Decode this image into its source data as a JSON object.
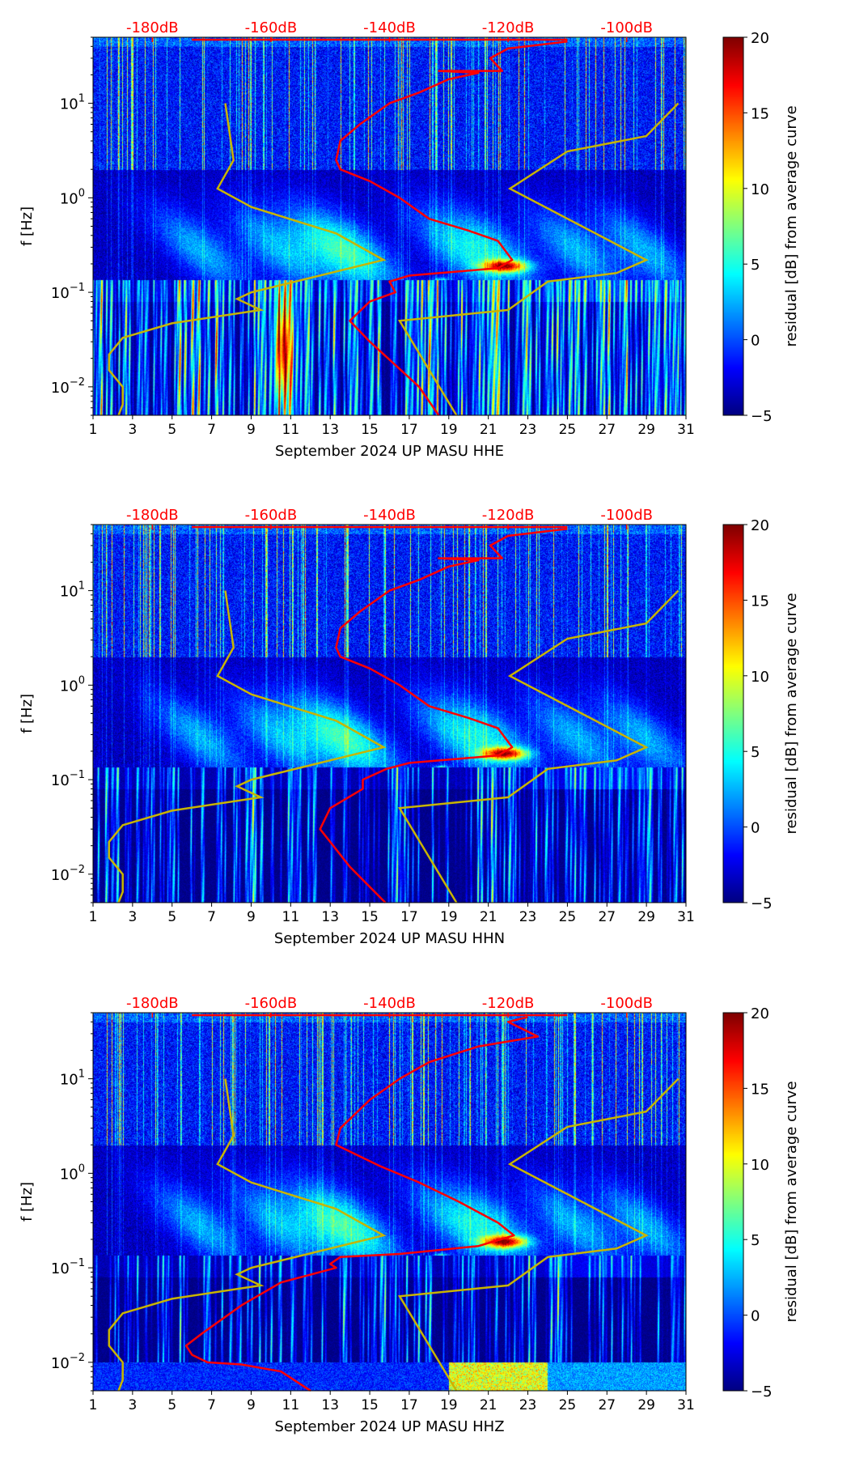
{
  "chart_data": [
    {
      "type": "heatmap",
      "title": "",
      "xlabel": "September 2024 UP MASU  HHE",
      "ylabel": "f [Hz]",
      "colorbar_label": "residual [dB] from average curve",
      "red_curve_db_freq": [
        [
          -110,
          45
        ],
        [
          -120,
          38
        ],
        [
          -123,
          30
        ],
        [
          -121,
          22
        ],
        [
          -131.7,
          22
        ],
        [
          -125,
          21
        ],
        [
          -130,
          18
        ],
        [
          -135,
          13
        ],
        [
          -140,
          10
        ],
        [
          -145,
          6
        ],
        [
          -148.3,
          4
        ],
        [
          -149,
          2.5
        ],
        [
          -148.3,
          2
        ],
        [
          -143.3,
          1.5
        ],
        [
          -138.3,
          1
        ],
        [
          -133.3,
          0.6
        ],
        [
          -126.7,
          0.45
        ],
        [
          -121.7,
          0.35
        ],
        [
          -119.3,
          0.22
        ],
        [
          -121.7,
          0.18
        ],
        [
          -136.7,
          0.15
        ],
        [
          -140,
          0.13
        ],
        [
          -139,
          0.1
        ],
        [
          -143.3,
          0.08
        ],
        [
          -146.7,
          0.05
        ],
        [
          -143.3,
          0.03
        ],
        [
          -135,
          0.01
        ],
        [
          -131.7,
          0.005
        ]
      ]
    },
    {
      "type": "heatmap",
      "title": "",
      "xlabel": "September 2024 UP MASU  HHN",
      "ylabel": "f [Hz]",
      "colorbar_label": "residual [dB] from average curve",
      "red_curve_db_freq": [
        [
          -110,
          45
        ],
        [
          -120,
          38
        ],
        [
          -123,
          30
        ],
        [
          -121,
          22
        ],
        [
          -131.7,
          22
        ],
        [
          -125,
          21
        ],
        [
          -130,
          18
        ],
        [
          -135,
          13
        ],
        [
          -140,
          10
        ],
        [
          -145,
          6
        ],
        [
          -148.3,
          4
        ],
        [
          -149,
          2.5
        ],
        [
          -148.3,
          2
        ],
        [
          -143.3,
          1.5
        ],
        [
          -138.3,
          1
        ],
        [
          -133.3,
          0.6
        ],
        [
          -126.7,
          0.45
        ],
        [
          -121.7,
          0.35
        ],
        [
          -119.3,
          0.22
        ],
        [
          -121.7,
          0.18
        ],
        [
          -136.7,
          0.15
        ],
        [
          -140.5,
          0.13
        ],
        [
          -144.5,
          0.1
        ],
        [
          -144.5,
          0.08
        ],
        [
          -150,
          0.05
        ],
        [
          -151.7,
          0.03
        ],
        [
          -146.7,
          0.012
        ],
        [
          -140.7,
          0.005
        ]
      ]
    },
    {
      "type": "heatmap",
      "title": "",
      "xlabel": "September 2024 UP MASU  HHZ",
      "ylabel": "f [Hz]",
      "colorbar_label": "residual [dB] from average curve",
      "red_curve_db_freq": [
        [
          -116.7,
          45
        ],
        [
          -120,
          40
        ],
        [
          -115,
          28
        ],
        [
          -125,
          22
        ],
        [
          -133.3,
          15
        ],
        [
          -138.3,
          10
        ],
        [
          -143.3,
          6
        ],
        [
          -148.3,
          3
        ],
        [
          -149,
          2
        ],
        [
          -141.7,
          1.2
        ],
        [
          -135,
          0.8
        ],
        [
          -128.3,
          0.5
        ],
        [
          -121.7,
          0.3
        ],
        [
          -119,
          0.22
        ],
        [
          -125,
          0.17
        ],
        [
          -138.3,
          0.14
        ],
        [
          -148.3,
          0.13
        ],
        [
          -150,
          0.11
        ],
        [
          -149,
          0.1
        ],
        [
          -158.3,
          0.07
        ],
        [
          -165,
          0.04
        ],
        [
          -171.7,
          0.02
        ],
        [
          -174.3,
          0.015
        ],
        [
          -173.3,
          0.012
        ],
        [
          -170.7,
          0.01
        ],
        [
          -165,
          0.0095
        ],
        [
          -158.3,
          0.008
        ],
        [
          -153.3,
          0.005
        ]
      ]
    }
  ],
  "shared": {
    "x_range_days": [
      1,
      31
    ],
    "xticks": [
      "1",
      "3",
      "5",
      "7",
      "9",
      "11",
      "13",
      "15",
      "17",
      "19",
      "21",
      "23",
      "25",
      "27",
      "29",
      "31"
    ],
    "ylim_hz": [
      0.005,
      50
    ],
    "yticks": [
      {
        "value": 10,
        "base": "10",
        "exp": "1"
      },
      {
        "value": 1,
        "base": "10",
        "exp": "0"
      },
      {
        "value": 0.1,
        "base": "10",
        "exp": "−1"
      },
      {
        "value": 0.01,
        "base": "10",
        "exp": "−2"
      }
    ],
    "top_axis_db_range": [
      -190,
      -90
    ],
    "top_ticks": [
      {
        "value": -180,
        "label": "-180dB"
      },
      {
        "value": -160,
        "label": "-160dB"
      },
      {
        "value": -140,
        "label": "-140dB"
      },
      {
        "value": -120,
        "label": "-120dB"
      },
      {
        "value": -100,
        "label": "-100dB"
      }
    ],
    "colorbar_range": [
      -5,
      20
    ],
    "colorbar_ticks": [
      "−5",
      "0",
      "5",
      "10",
      "15",
      "20"
    ],
    "colorbar_tick_values": [
      -5,
      0,
      5,
      10,
      15,
      20
    ],
    "colormap": "jet",
    "low_noise_model_db_freq": [
      [
        -167.7,
        10
      ],
      [
        -166.3,
        2.5
      ],
      [
        -169,
        1.25
      ],
      [
        -163.3,
        0.8
      ],
      [
        -149,
        0.42
      ],
      [
        -141,
        0.22
      ],
      [
        -148.3,
        0.17
      ],
      [
        -163.3,
        0.1
      ],
      [
        -165.7,
        0.085
      ],
      [
        -161.7,
        0.065
      ],
      [
        -176.7,
        0.047
      ],
      [
        -185,
        0.033
      ],
      [
        -187.3,
        0.022
      ],
      [
        -187.3,
        0.015
      ],
      [
        -185,
        0.01
      ],
      [
        -185,
        0.0065
      ],
      [
        -185.7,
        0.005
      ]
    ],
    "high_noise_model_db_freq": [
      [
        -91.3,
        10
      ],
      [
        -96.7,
        4.5
      ],
      [
        -110,
        3.1
      ],
      [
        -119.7,
        1.25
      ],
      [
        -96.7,
        0.22
      ],
      [
        -101.7,
        0.16
      ],
      [
        -113.3,
        0.13
      ],
      [
        -120,
        0.065
      ],
      [
        -138.3,
        0.05
      ],
      [
        -128.7,
        0.005
      ]
    ],
    "colors": {
      "red_curve": "#ff0000",
      "model_curves": "#c8b400",
      "top_labels": "#ff0000"
    }
  }
}
